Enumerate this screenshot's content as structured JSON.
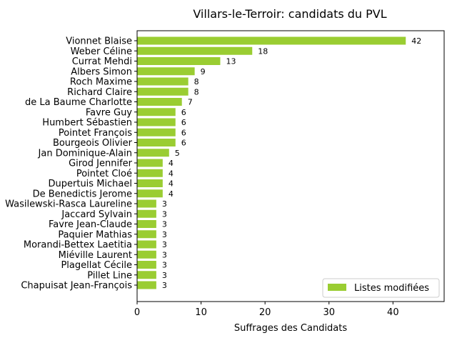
{
  "chart_data": {
    "type": "bar",
    "orientation": "horizontal",
    "title": "Villars-le-Terroir: candidats du PVL",
    "xlabel": "Suffrages des Candidats",
    "ylabel": "",
    "xlim": [
      0,
      48
    ],
    "xticks": [
      0,
      10,
      20,
      30,
      40
    ],
    "bar_color": "#9acd32",
    "legend": {
      "label": "Listes modifiées",
      "position": "lower-right"
    },
    "categories": [
      "Vionnet Blaise",
      "Weber Céline",
      "Currat Mehdi",
      "Albers Simon",
      "Roch Maxime",
      "Richard Claire",
      "de La Baume Charlotte",
      "Favre Guy",
      "Humbert Sébastien",
      "Pointet François",
      "Bourgeois Olivier",
      "Jan Dominique-Alain",
      "Girod Jennifer",
      "Pointet Cloé",
      "Dupertuis Michael",
      "De Benedictis Jerome",
      "Wasilewski-Rasca Laureline",
      "Jaccard Sylvain",
      "Favre Jean-Claude",
      "Paquier Mathias",
      "Morandi-Bettex Laetitia",
      "Miéville Laurent",
      "Plagellat Cécile",
      "Pillet Line",
      "Chapuisat Jean-François"
    ],
    "values": [
      42,
      18,
      13,
      9,
      8,
      8,
      7,
      6,
      6,
      6,
      6,
      5,
      4,
      4,
      4,
      4,
      3,
      3,
      3,
      3,
      3,
      3,
      3,
      3,
      3
    ]
  }
}
